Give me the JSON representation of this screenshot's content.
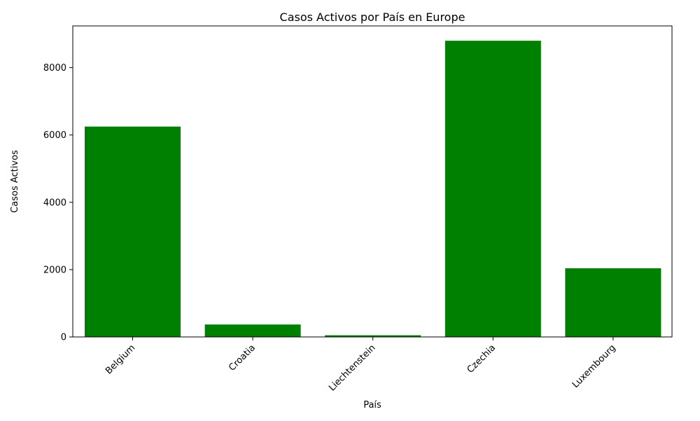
{
  "chart_data": {
    "type": "bar",
    "title": "Casos Activos por País en Europe",
    "xlabel": "País",
    "ylabel": "Casos Activos",
    "categories": [
      "Belgium",
      "Croatia",
      "Liechtenstein",
      "Czechia",
      "Luxembourg"
    ],
    "values": [
      6250,
      370,
      50,
      8800,
      2040
    ],
    "ylim": [
      0,
      9240
    ],
    "yticks": [
      0,
      2000,
      4000,
      6000,
      8000
    ],
    "bar_color": "#008000",
    "grid": false,
    "legend": "none"
  }
}
